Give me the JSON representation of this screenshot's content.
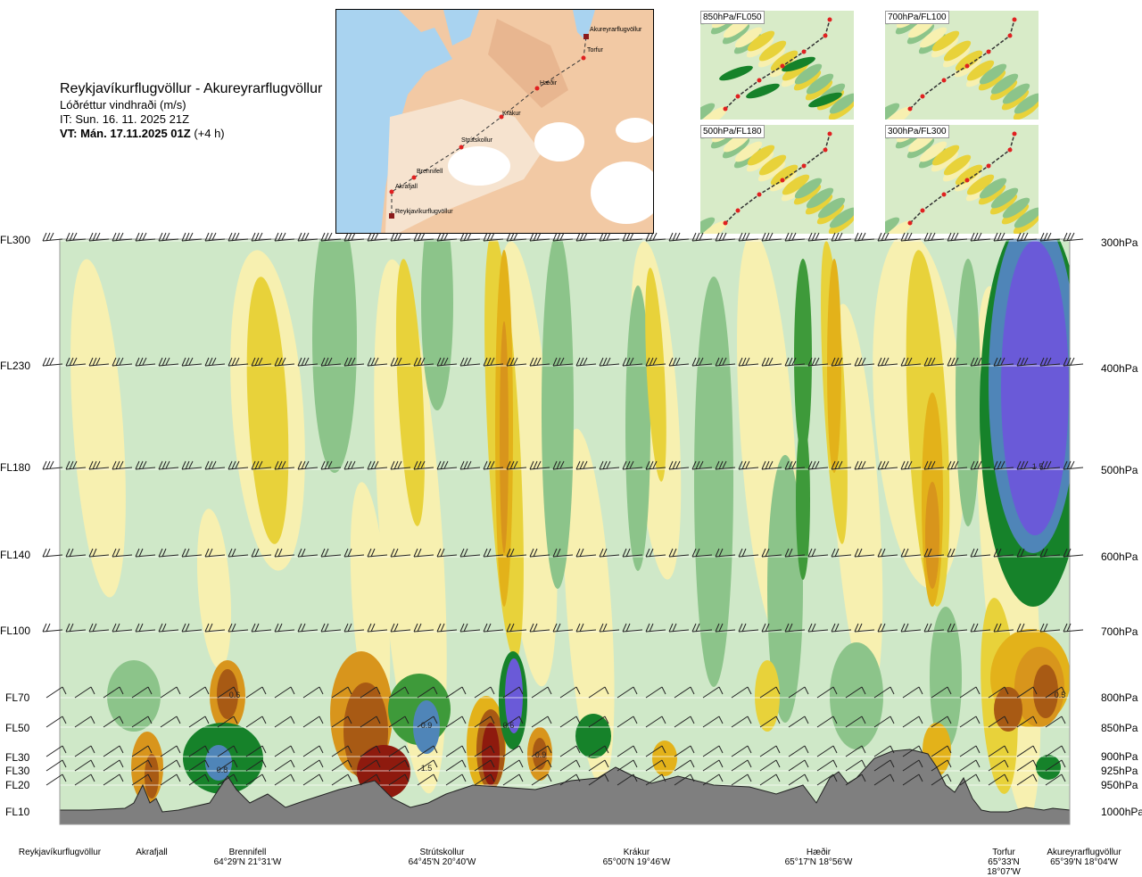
{
  "title": {
    "route": "Reykjavíkurflugvöllur - Akureyrarflugvöllur",
    "variable": "Lóðréttur vindhraði (m/s)",
    "it": "IT: Sun. 16. 11. 2025 21Z",
    "vt_bold": "VT: Mán. 17.11.2025 01Z",
    "vt_rest": " (+4 h)"
  },
  "map_labels": [
    "Akureyrarflugvöllur",
    "Torfur",
    "Hæðir",
    "Krákur",
    "Strútskollur",
    "Brennifell",
    "Akrafjall",
    "Reykjavíkurflugvöllur"
  ],
  "minimaps": [
    {
      "label": "850hPa/FL050"
    },
    {
      "label": "700hPa/FL100"
    },
    {
      "label": "500hPa/FL180"
    },
    {
      "label": "300hPa/FL300"
    }
  ],
  "left_levels": [
    "FL300",
    "FL230",
    "FL180",
    "FL140",
    "FL100",
    "FL70",
    "FL50",
    "FL30",
    "FL30",
    "FL20",
    "FL10"
  ],
  "right_levels": [
    "300hPa",
    "400hPa",
    "500hPa",
    "600hPa",
    "700hPa",
    "800hPa",
    "850hPa",
    "900hPa",
    "925hPa",
    "950hPa",
    "1000hPa"
  ],
  "locations": [
    {
      "name": "Reykjavíkurflugvöllur",
      "coord": ""
    },
    {
      "name": "Akrafjall",
      "coord": ""
    },
    {
      "name": "Brennifell",
      "coord": "64°29'N 21°31'W"
    },
    {
      "name": "Strútskollur",
      "coord": "64°45'N 20°40'W"
    },
    {
      "name": "Krákur",
      "coord": "65°00'N 19°46'W"
    },
    {
      "name": "Hæðir",
      "coord": "65°17'N 18°56'W"
    },
    {
      "name": "Torfur",
      "coord": "65°33'N 18°07'W"
    },
    {
      "name": "Akureyrarflugvöllur",
      "coord": "65°39'N 18°04'W"
    }
  ],
  "chart_data": {
    "type": "heatmap",
    "title": "Lóðréttur vindhraði (m/s)",
    "y_levels_hpa": [
      300,
      400,
      500,
      600,
      700,
      800,
      850,
      900,
      925,
      950,
      1000
    ],
    "annotations": [
      "0.6",
      "0.8",
      "0.9",
      "1.5",
      "0.6",
      "0.9",
      "1.5",
      "0.5"
    ],
    "colors": {
      "pale_yellow": "#f7f0b0",
      "yellow": "#e8d23a",
      "gold": "#e3b21a",
      "orange": "#d8951c",
      "brown": "#a85a14",
      "darkred": "#8e1a0e",
      "pale_green": "#cfe8c8",
      "mid_green": "#8cc48a",
      "green": "#3e9a3a",
      "dark_green": "#16822a",
      "steel_blue": "#4f85b8",
      "violet": "#6a5ad8",
      "terrain": "#7f7f7f"
    }
  }
}
